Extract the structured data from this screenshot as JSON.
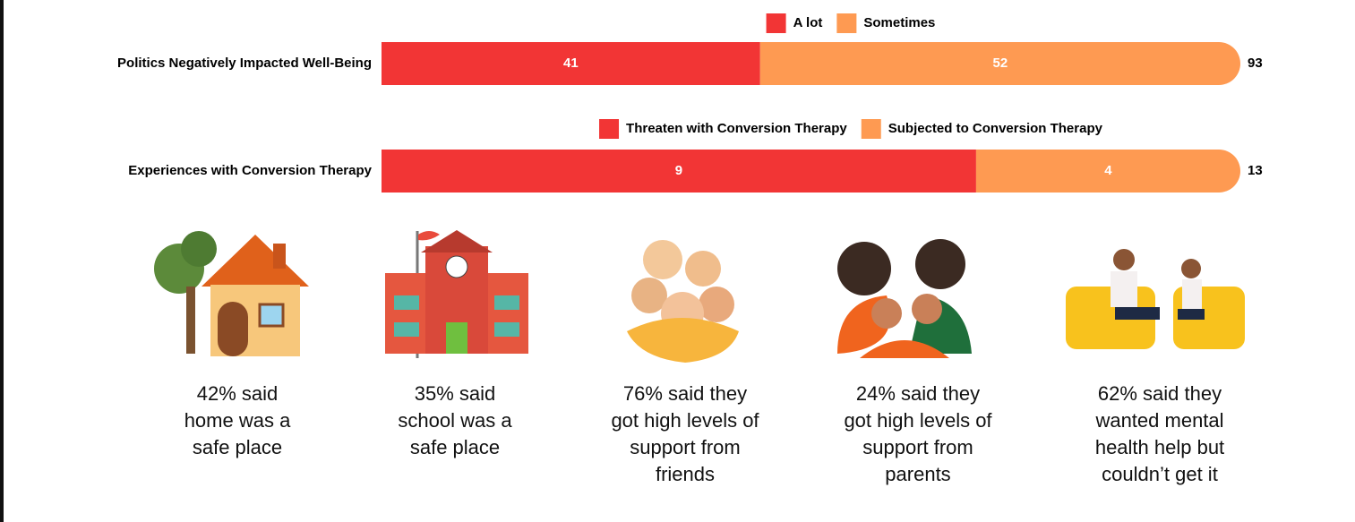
{
  "chart_data": [
    {
      "type": "stacked-barh",
      "categories": [
        "Politics Negatively Impacted Well-Being"
      ],
      "series": [
        {
          "name": "A lot",
          "color": "#f23535",
          "values": [
            41
          ]
        },
        {
          "name": "Sometimes",
          "color": "#fe9a52",
          "values": [
            52
          ]
        }
      ],
      "totals": [
        93
      ],
      "xlim": [
        0,
        93
      ],
      "legend": "top"
    },
    {
      "type": "stacked-barh",
      "categories": [
        "Experiences with Conversion Therapy"
      ],
      "series": [
        {
          "name": "Threaten with Conversion Therapy",
          "color": "#f23535",
          "values": [
            9
          ]
        },
        {
          "name": "Subjected to Conversion Therapy",
          "color": "#fe9a52",
          "values": [
            4
          ]
        }
      ],
      "totals": [
        13
      ],
      "xlim": [
        0,
        13
      ],
      "legend": "top"
    }
  ],
  "stats": [
    "42% said home was a safe place",
    "35% said school was a safe place",
    "76% said they got high levels of support from friends",
    "24% said they got high levels of support from parents",
    "62% said they wanted mental health help but couldn’t get it"
  ]
}
